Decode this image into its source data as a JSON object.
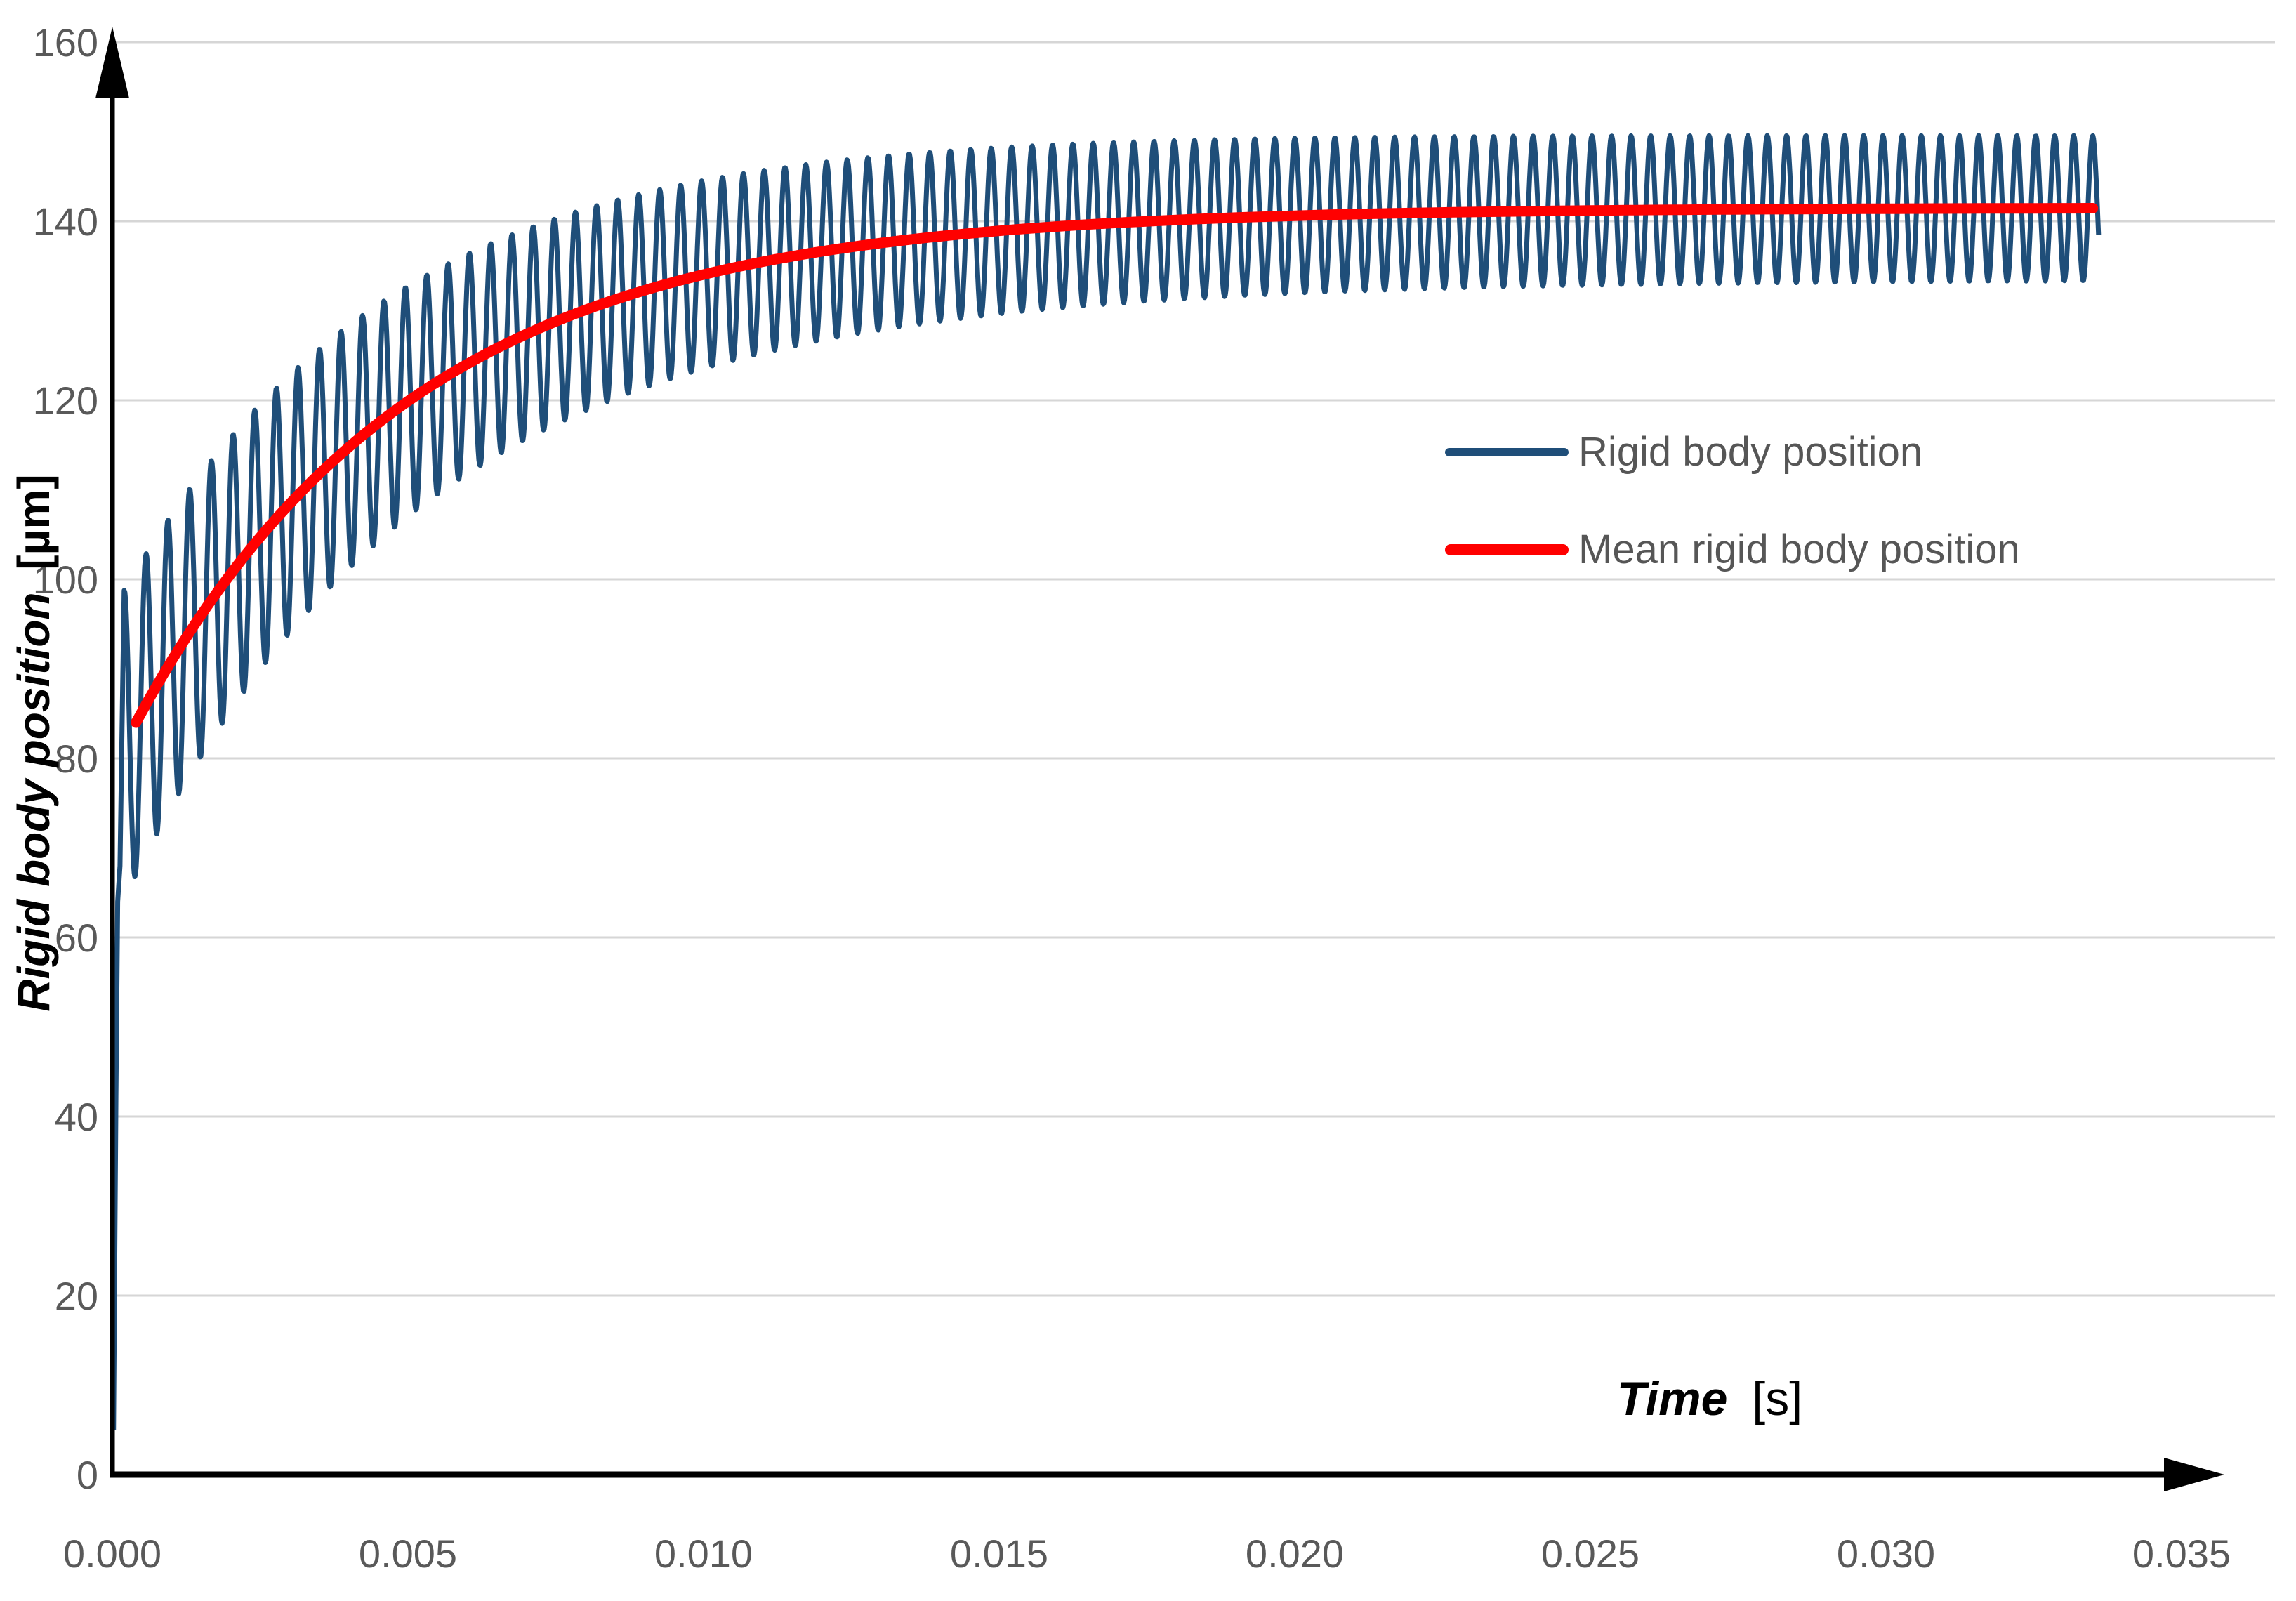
{
  "chart_data": {
    "type": "line",
    "title": "",
    "xlabel_main": "Time",
    "xlabel_unit": "[s]",
    "ylabel_main": "Rigid body position",
    "ylabel_unit": "[µm]",
    "xlim": [
      0,
      0.035
    ],
    "ylim": [
      0,
      160
    ],
    "x_ticks": [
      {
        "value": 0.0,
        "label": "0.000"
      },
      {
        "value": 0.005,
        "label": "0.005"
      },
      {
        "value": 0.01,
        "label": "0.010"
      },
      {
        "value": 0.015,
        "label": "0.015"
      },
      {
        "value": 0.02,
        "label": "0.020"
      },
      {
        "value": 0.025,
        "label": "0.025"
      },
      {
        "value": 0.03,
        "label": "0.030"
      },
      {
        "value": 0.035,
        "label": "0.035"
      }
    ],
    "y_ticks": [
      {
        "value": 0,
        "label": "0"
      },
      {
        "value": 20,
        "label": "20"
      },
      {
        "value": 40,
        "label": "40"
      },
      {
        "value": 60,
        "label": "60"
      },
      {
        "value": 80,
        "label": "80"
      },
      {
        "value": 100,
        "label": "100"
      },
      {
        "value": 120,
        "label": "120"
      },
      {
        "value": 140,
        "label": "140"
      },
      {
        "value": 160,
        "label": "160"
      }
    ],
    "grid": "horizontal",
    "gridline_color": "#d6d6d6",
    "axis_color": "#000000",
    "tick_label_color": "#595959",
    "legend_position": "inside-right-upper",
    "series": [
      {
        "name": "Rigid body position",
        "color": "#1f4e79",
        "kind": "oscillation",
        "t_start": 0.0002,
        "t_end": 0.0336,
        "period_start_s": 0.00037,
        "period_end_s": 0.00032,
        "startup_points": [
          [
            2e-05,
            5
          ],
          [
            6e-05,
            42
          ],
          [
            9e-05,
            64
          ],
          [
            0.00013,
            68
          ],
          [
            0.00017,
            86
          ]
        ],
        "mean_model": {
          "v_inf": 141.5,
          "delta": 57.5,
          "t0": 0.0004,
          "tau": 0.0047
        },
        "amp_model": {
          "a_inf": 8.0,
          "a0": 9.5,
          "tau": 0.0075
        },
        "envelope_summary": {
          "first_peak": 104,
          "first_trough": 76,
          "peak_at_0.005": 133,
          "trough_at_0.005": 109,
          "peak_at_0.010": 144,
          "trough_at_0.010": 124,
          "steady_peak": 149.5,
          "steady_trough": 133.5
        }
      },
      {
        "name": "Mean rigid body position",
        "color": "#ff0000",
        "kind": "mean-curve",
        "t_start": 0.0004,
        "t_end": 0.0335,
        "points": [
          [
            0.0004,
            84
          ],
          [
            0.001,
            91
          ],
          [
            0.002,
            101
          ],
          [
            0.003,
            108.5
          ],
          [
            0.004,
            115
          ],
          [
            0.005,
            120
          ],
          [
            0.006,
            124
          ],
          [
            0.008,
            130
          ],
          [
            0.01,
            134
          ],
          [
            0.012,
            136.5
          ],
          [
            0.015,
            139
          ],
          [
            0.02,
            140.6
          ],
          [
            0.025,
            141.2
          ],
          [
            0.03,
            141.4
          ],
          [
            0.0335,
            141.5
          ]
        ],
        "mean_model": {
          "v_inf": 141.5,
          "delta": 57.5,
          "t0": 0.0004,
          "tau": 0.0047
        }
      }
    ]
  }
}
